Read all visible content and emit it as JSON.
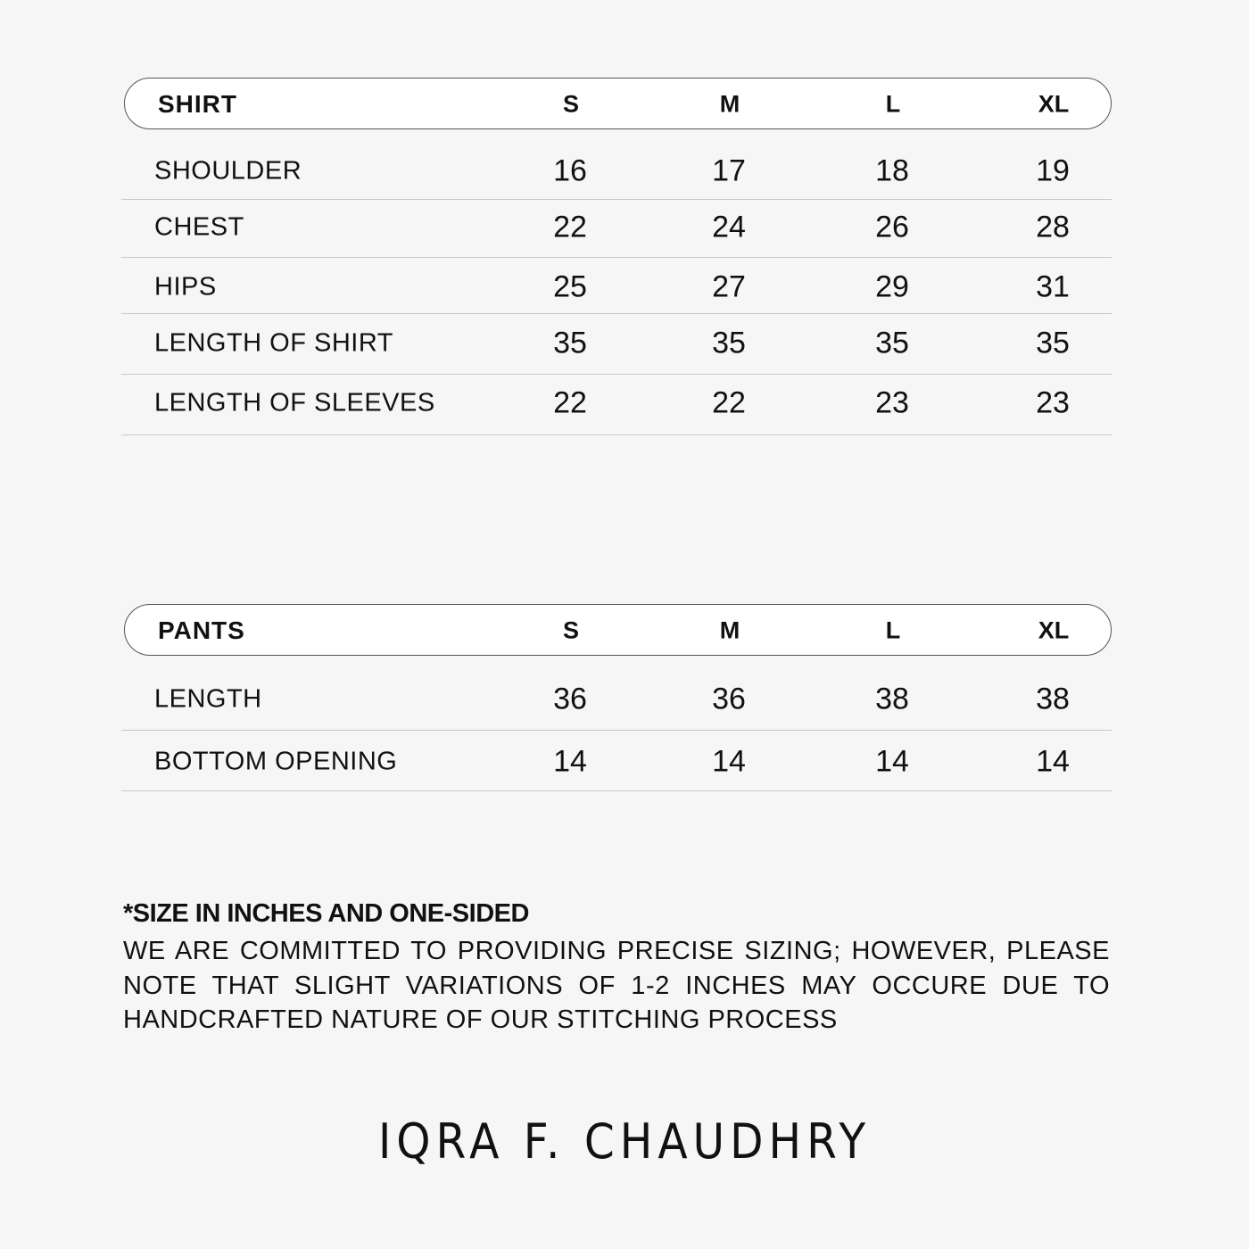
{
  "shirt": {
    "title": "SHIRT",
    "sizes": [
      "S",
      "M",
      "L",
      "XL"
    ],
    "rows": [
      {
        "label": "SHOULDER",
        "values": [
          "16",
          "17",
          "18",
          "19"
        ]
      },
      {
        "label": "CHEST",
        "values": [
          "22",
          "24",
          "26",
          "28"
        ]
      },
      {
        "label": "HIPS",
        "values": [
          "25",
          "27",
          "29",
          "31"
        ]
      },
      {
        "label": "LENGTH OF SHIRT",
        "values": [
          "35",
          "35",
          "35",
          "35"
        ]
      },
      {
        "label": "LENGTH OF SLEEVES",
        "values": [
          "22",
          "22",
          "23",
          "23"
        ]
      }
    ]
  },
  "pants": {
    "title": "PANTS",
    "sizes": [
      "S",
      "M",
      "L",
      "XL"
    ],
    "rows": [
      {
        "label": "LENGTH",
        "values": [
          "36",
          "36",
          "38",
          "38"
        ]
      },
      {
        "label": "BOTTOM OPENING",
        "values": [
          "14",
          "14",
          "14",
          "14"
        ]
      }
    ]
  },
  "notes": {
    "title": "*SIZE IN INCHES AND ONE-SIDED",
    "body": "WE ARE COMMITTED TO PROVIDING PRECISE SIZING; HOWEVER, PLEASE NOTE THAT SLIGHT VARIATIONS OF 1-2 INCHES MAY OCCURE DUE TO HANDCRAFTED NATURE OF OUR STITCHING PROCESS"
  },
  "brand": {
    "logo": "IQRA F. CHAUDHRY"
  }
}
